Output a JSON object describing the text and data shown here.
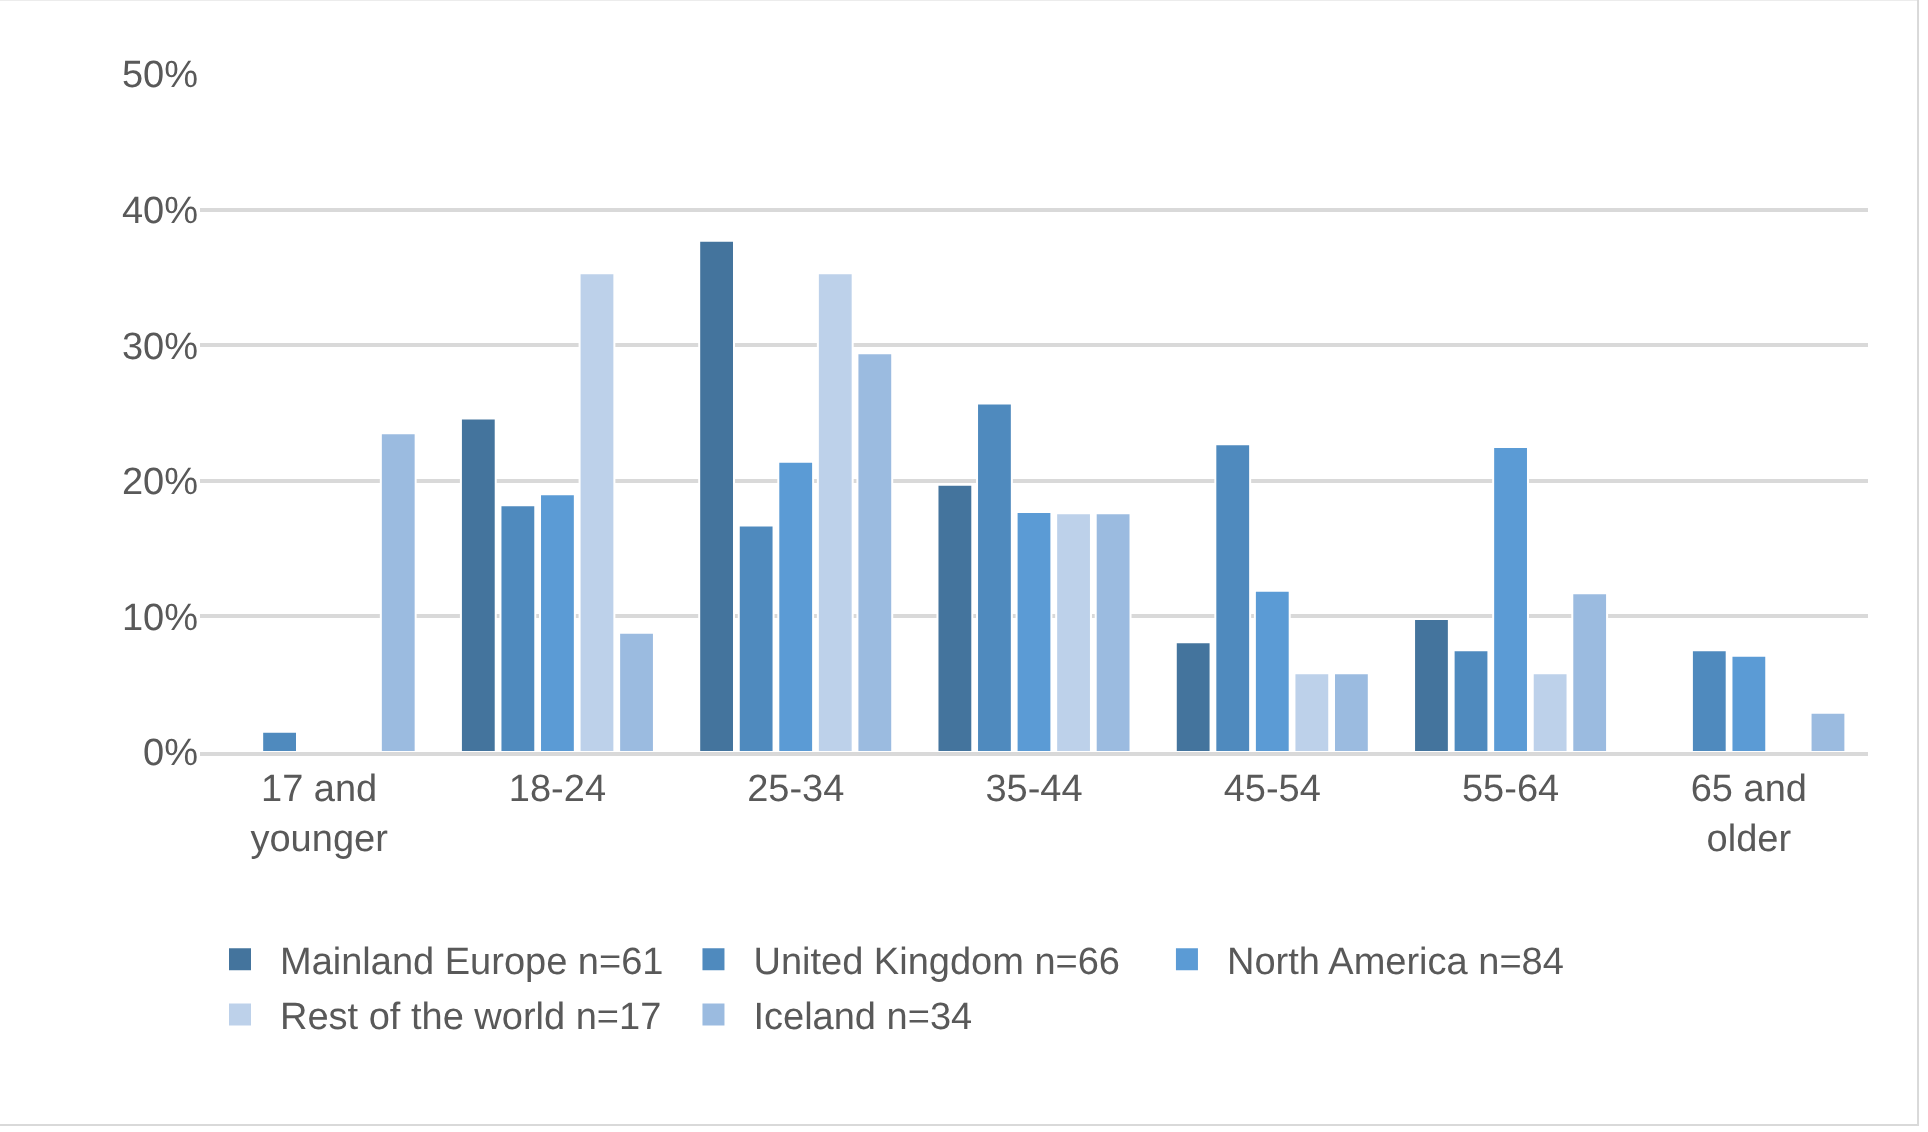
{
  "chart_data": {
    "type": "bar",
    "categories": [
      "17 and younger",
      "18-24",
      "25-34",
      "35-44",
      "45-54",
      "55-64",
      "65 and older"
    ],
    "series": [
      {
        "name": "Mainland Europe n=61",
        "color": "#44749d",
        "values": [
          null,
          24.6,
          37.7,
          19.7,
          8.1,
          9.8,
          null
        ]
      },
      {
        "name": "United Kingdom n=66",
        "color": "#4f8abe",
        "values": [
          1.5,
          18.2,
          16.7,
          25.7,
          22.7,
          7.5,
          7.5
        ]
      },
      {
        "name": "North America n=84",
        "color": "#5b9bd5",
        "values": [
          null,
          19.0,
          21.4,
          17.7,
          11.9,
          22.5,
          7.1
        ]
      },
      {
        "name": "Rest of the world n=17",
        "color": "#bdd1ea",
        "values": [
          null,
          35.3,
          35.3,
          17.6,
          5.8,
          5.8,
          null
        ]
      },
      {
        "name": "Iceland n=34",
        "color": "#9bbbe0",
        "values": [
          23.5,
          8.8,
          29.4,
          17.6,
          5.8,
          11.7,
          2.9
        ]
      }
    ],
    "ylim": [
      0,
      50
    ],
    "yticks": [
      {
        "value": 0,
        "label": "0%"
      },
      {
        "value": 10,
        "label": "10%"
      },
      {
        "value": 20,
        "label": "20%"
      },
      {
        "value": 30,
        "label": "30%"
      },
      {
        "value": 40,
        "label": "40%"
      },
      {
        "value": 50,
        "label": "50%"
      }
    ],
    "grid": "y",
    "legend": "bottom"
  }
}
